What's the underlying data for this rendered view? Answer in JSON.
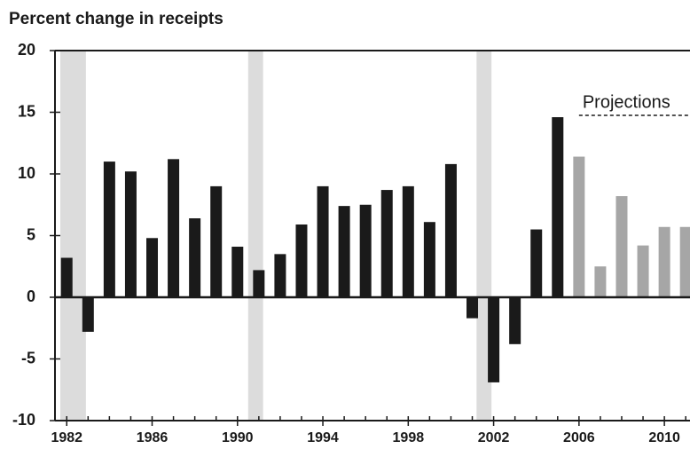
{
  "chart_data": {
    "type": "bar",
    "title": "Percent change in receipts",
    "x": [
      1982,
      1983,
      1984,
      1985,
      1986,
      1987,
      1988,
      1989,
      1990,
      1991,
      1992,
      1993,
      1994,
      1995,
      1996,
      1997,
      1998,
      1999,
      2000,
      2001,
      2002,
      2003,
      2004,
      2005,
      2006,
      2007,
      2008,
      2009,
      2010,
      2011
    ],
    "series": [
      {
        "color": "#1a1a1a",
        "values": [
          3.2,
          -2.8,
          11.0,
          10.2,
          4.8,
          11.2,
          6.4,
          9.0,
          4.1,
          2.2,
          3.5,
          5.9,
          9.0,
          7.4,
          7.5,
          8.7,
          9.0,
          6.1,
          10.8,
          -1.7,
          -6.9,
          -3.8,
          5.5,
          14.6,
          null,
          null,
          null,
          null,
          null,
          null
        ]
      },
      {
        "name": "Projections",
        "color": "#a6a6a6",
        "values": [
          null,
          null,
          null,
          null,
          null,
          null,
          null,
          null,
          null,
          null,
          null,
          null,
          null,
          null,
          null,
          null,
          null,
          null,
          null,
          null,
          null,
          null,
          null,
          null,
          11.4,
          2.5,
          8.2,
          4.2,
          5.7,
          5.7
        ]
      }
    ],
    "recessions": [
      [
        1981.7,
        1982.9
      ],
      [
        1990.5,
        1991.2
      ],
      [
        2001.2,
        2001.9
      ]
    ],
    "recession_color": "#dcdcdc",
    "xlim": [
      1981.45,
      2011.2
    ],
    "xticks": [
      1982,
      1986,
      1990,
      1994,
      1998,
      2002,
      2006,
      2010
    ],
    "ylim": [
      -10,
      20
    ],
    "yticks": [
      -10,
      -5,
      0,
      5,
      10,
      15,
      20
    ]
  }
}
